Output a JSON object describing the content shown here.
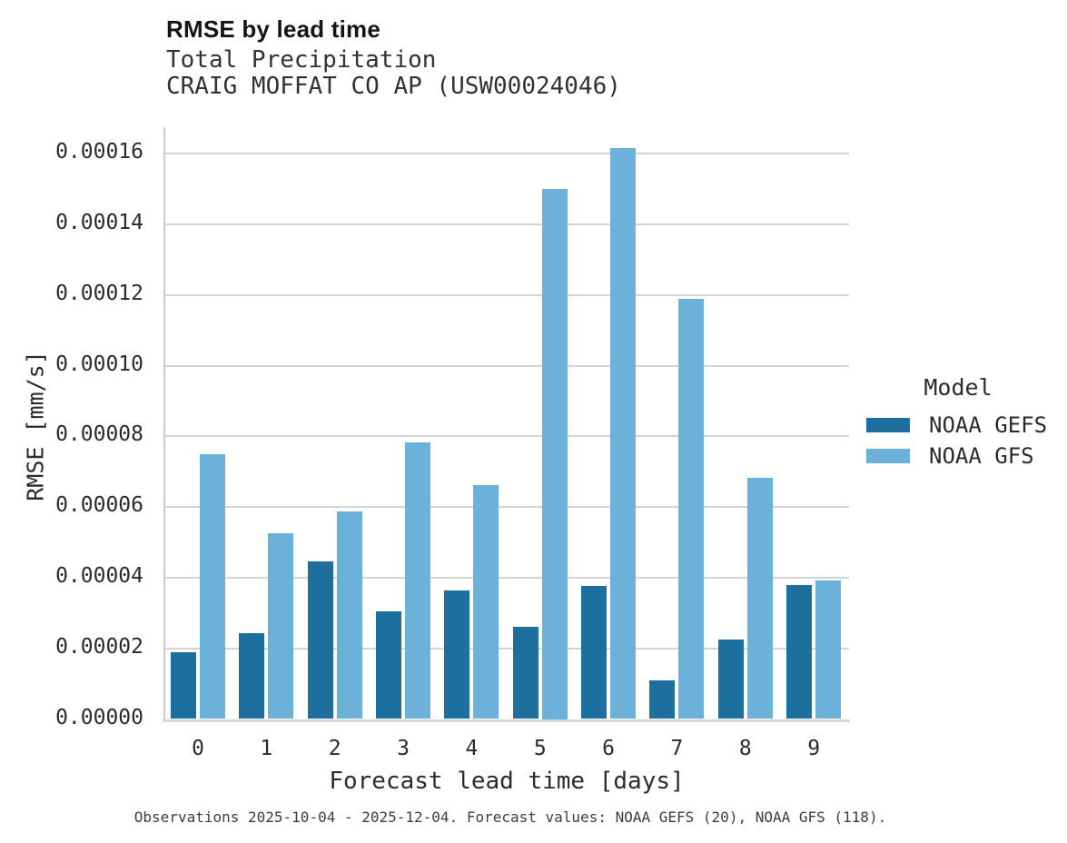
{
  "chart_data": {
    "type": "bar",
    "title": "RMSE by lead time",
    "subtitle": "Total Precipitation",
    "station": "CRAIG MOFFAT CO AP (USW00024046)",
    "xlabel": "Forecast lead time [days]",
    "ylabel": "RMSE [mm/s]",
    "legend_title": "Model",
    "legend_position": "right",
    "grid": true,
    "categories": [
      "0",
      "1",
      "2",
      "3",
      "4",
      "5",
      "6",
      "7",
      "8",
      "9"
    ],
    "series": [
      {
        "name": "NOAA GEFS",
        "color": "#1d6f9e",
        "values": [
          1.9e-05,
          2.42e-05,
          4.45e-05,
          3.05e-05,
          3.65e-05,
          2.61e-05,
          3.76e-05,
          1.1e-05,
          2.24e-05,
          3.79e-05
        ]
      },
      {
        "name": "NOAA GFS",
        "color": "#6bb1d9",
        "values": [
          7.49e-05,
          5.26e-05,
          5.88e-05,
          7.83e-05,
          6.61e-05,
          0.00015,
          0.0001616,
          0.000119,
          6.83e-05,
          3.92e-05
        ]
      }
    ],
    "ylim": [
      0,
      0.000168
    ],
    "yticks": [
      {
        "label": "0.00000",
        "value": 0.0
      },
      {
        "label": "0.00002",
        "value": 2e-05
      },
      {
        "label": "0.00004",
        "value": 4e-05
      },
      {
        "label": "0.00006",
        "value": 6e-05
      },
      {
        "label": "0.00008",
        "value": 8e-05
      },
      {
        "label": "0.00010",
        "value": 0.0001
      },
      {
        "label": "0.00012",
        "value": 0.00012
      },
      {
        "label": "0.00014",
        "value": 0.00014
      },
      {
        "label": "0.00016",
        "value": 0.00016
      }
    ],
    "caption": "Observations 2025-10-04 - 2025-12-04. Forecast values: NOAA GEFS (20), NOAA GFS (118)."
  }
}
